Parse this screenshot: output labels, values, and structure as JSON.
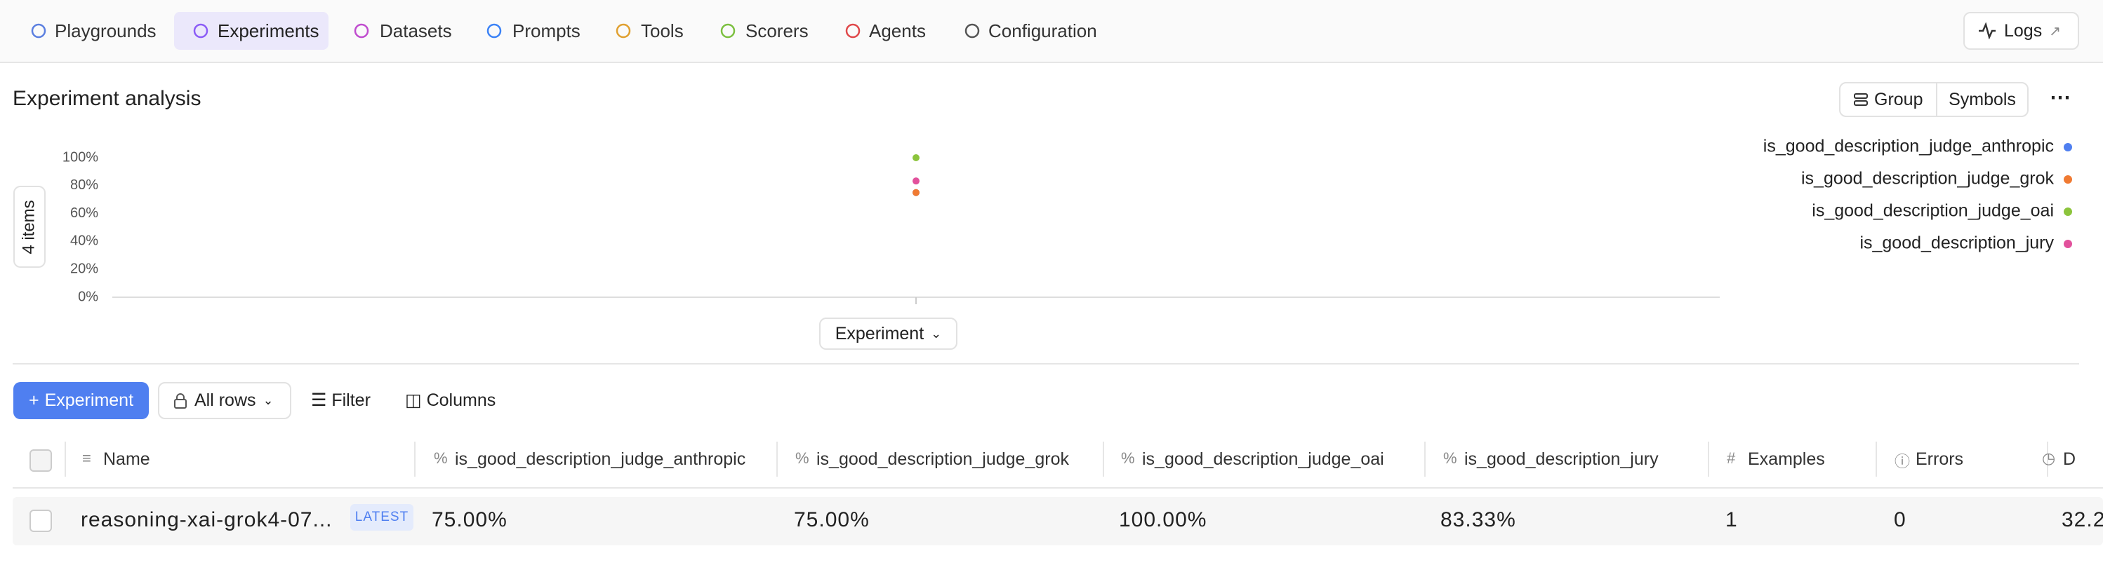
{
  "nav": {
    "items": [
      "Playgrounds",
      "Experiments",
      "Datasets",
      "Prompts",
      "Tools",
      "Scorers",
      "Agents",
      "Configuration"
    ],
    "active": 1,
    "logs": "Logs"
  },
  "analysis": {
    "title": "Experiment analysis",
    "buttons": [
      "Group",
      "Symbols"
    ],
    "side_label": "4 items",
    "x_selector": "Experiment"
  },
  "chart_data": {
    "type": "scatter",
    "ylim": [
      0,
      100
    ],
    "yticks": [
      {
        "value": 0,
        "label": "0%"
      },
      {
        "value": 20,
        "label": "20%"
      },
      {
        "value": 40,
        "label": "40%"
      },
      {
        "value": 60,
        "label": "60%"
      },
      {
        "value": 80,
        "label": "80%"
      },
      {
        "value": 100,
        "label": "100%"
      }
    ],
    "series": [
      {
        "name": "is_good_description_judge_anthropic",
        "color": "#4f7ff0",
        "values": [
          75
        ]
      },
      {
        "name": "is_good_description_judge_grok",
        "color": "#f07a32",
        "values": [
          75
        ]
      },
      {
        "name": "is_good_description_judge_oai",
        "color": "#8cc43c",
        "values": [
          100
        ]
      },
      {
        "name": "is_good_description_jury",
        "color": "#e2519c",
        "values": [
          83.33
        ]
      }
    ]
  },
  "toolbar": {
    "add": "Experiment",
    "rows": "All rows",
    "filter": "Filter",
    "columns": "Columns"
  },
  "table": {
    "columns": [
      "Name",
      "is_good_description_judge_anthropic",
      "is_good_description_judge_grok",
      "is_good_description_judge_oai",
      "is_good_description_jury",
      "Examples",
      "Errors",
      "D"
    ],
    "rows": [
      {
        "name": "reasoning-xai-grok4-07...",
        "badge": "LATEST",
        "cells": [
          "75.00%",
          "75.00%",
          "100.00%",
          "83.33%",
          "1",
          "0",
          "32.2"
        ]
      }
    ]
  }
}
